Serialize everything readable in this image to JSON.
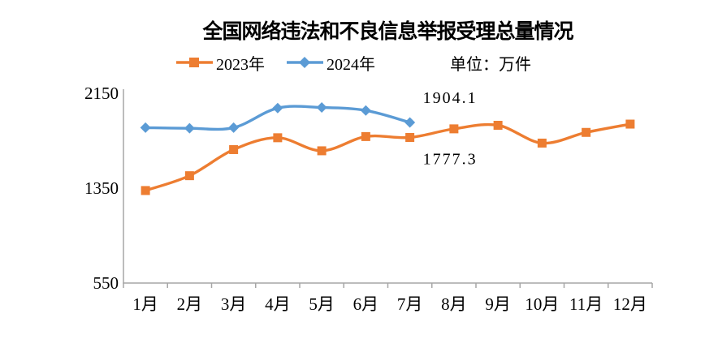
{
  "chart_data": {
    "type": "line",
    "title": "全国网络违法和不良信息举报受理总量情况",
    "unit_label": "单位：万件",
    "categories": [
      "1月",
      "2月",
      "3月",
      "4月",
      "5月",
      "6月",
      "7月",
      "8月",
      "9月",
      "10月",
      "11月",
      "12月"
    ],
    "y_axis": {
      "min": 550,
      "max": 2150,
      "ticks": [
        2150,
        1350,
        550
      ]
    },
    "series": [
      {
        "name": "2023年",
        "color": "#ED7D31",
        "marker": "square",
        "values": [
          1330,
          1455,
          1675,
          1775,
          1665,
          1785,
          1777.3,
          1850,
          1880,
          1730,
          1820,
          1890
        ]
      },
      {
        "name": "2024年",
        "color": "#5B9BD5",
        "marker": "diamond",
        "values": [
          1860,
          1855,
          1860,
          2025,
          2030,
          2005,
          1904.1
        ]
      }
    ],
    "annotations": [
      {
        "text": "1904.1",
        "series_index": 1,
        "point_index": 6,
        "position": "above"
      },
      {
        "text": "1777.3",
        "series_index": 0,
        "point_index": 6,
        "position": "below"
      }
    ],
    "axis_color": "#A6A6A6",
    "text_color": "#000000",
    "legend_position": "top",
    "grid": false,
    "smooth_lines": true
  }
}
